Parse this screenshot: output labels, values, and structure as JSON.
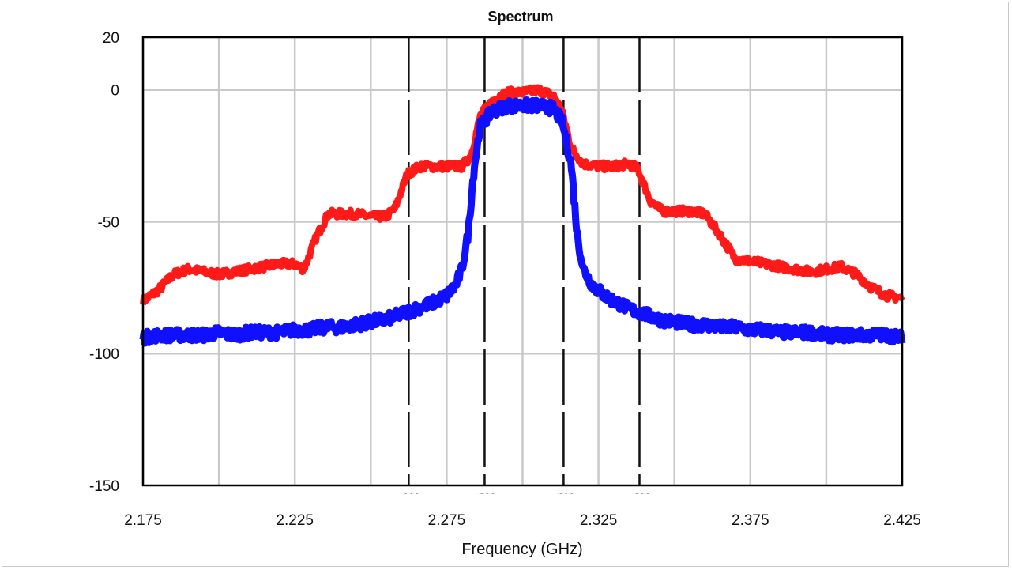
{
  "chart_data": {
    "type": "line",
    "title": "Spectrum",
    "xlabel": "Frequency (GHz)",
    "ylabel": "",
    "xlim": [
      2.175,
      2.425
    ],
    "ylim": [
      -150,
      20
    ],
    "x_ticks": [
      "2.175",
      "2.225",
      "2.275",
      "2.325",
      "2.375",
      "2.425"
    ],
    "y_ticks": [
      "20",
      "0",
      "-50",
      "-100",
      "-150"
    ],
    "x_grid": [
      2.175,
      2.2,
      2.225,
      2.25,
      2.275,
      2.3,
      2.325,
      2.35,
      2.375,
      2.4,
      2.425
    ],
    "y_grid": [
      0,
      -50,
      -100
    ],
    "grid": true,
    "markers": [
      {
        "x": 2.2625,
        "label": "~~~"
      },
      {
        "x": 2.2875,
        "label": "~~~"
      },
      {
        "x": 2.3135,
        "label": "~~~"
      },
      {
        "x": 2.3385,
        "label": "~~~"
      }
    ],
    "series": [
      {
        "color": "#ff1a1a",
        "points": [
          [
            2.175,
            -80
          ],
          [
            2.18,
            -76
          ],
          [
            2.185,
            -70
          ],
          [
            2.19,
            -68
          ],
          [
            2.195,
            -69
          ],
          [
            2.2,
            -70
          ],
          [
            2.205,
            -69
          ],
          [
            2.21,
            -68
          ],
          [
            2.215,
            -67
          ],
          [
            2.22,
            -66
          ],
          [
            2.225,
            -66
          ],
          [
            2.228,
            -68
          ],
          [
            2.232,
            -56
          ],
          [
            2.236,
            -47
          ],
          [
            2.24,
            -47
          ],
          [
            2.245,
            -47
          ],
          [
            2.25,
            -48
          ],
          [
            2.255,
            -48
          ],
          [
            2.258,
            -45
          ],
          [
            2.262,
            -32
          ],
          [
            2.266,
            -29
          ],
          [
            2.27,
            -29
          ],
          [
            2.275,
            -29
          ],
          [
            2.28,
            -29
          ],
          [
            2.283,
            -25
          ],
          [
            2.286,
            -10
          ],
          [
            2.29,
            -4
          ],
          [
            2.295,
            -1
          ],
          [
            2.3,
            -1
          ],
          [
            2.305,
            0
          ],
          [
            2.31,
            -2
          ],
          [
            2.313,
            -8
          ],
          [
            2.316,
            -22
          ],
          [
            2.32,
            -28
          ],
          [
            2.325,
            -29
          ],
          [
            2.33,
            -29
          ],
          [
            2.335,
            -28
          ],
          [
            2.338,
            -30
          ],
          [
            2.342,
            -42
          ],
          [
            2.346,
            -46
          ],
          [
            2.35,
            -46
          ],
          [
            2.355,
            -46
          ],
          [
            2.36,
            -47
          ],
          [
            2.365,
            -55
          ],
          [
            2.37,
            -64
          ],
          [
            2.375,
            -65
          ],
          [
            2.38,
            -66
          ],
          [
            2.385,
            -67
          ],
          [
            2.39,
            -68
          ],
          [
            2.395,
            -69
          ],
          [
            2.4,
            -68
          ],
          [
            2.405,
            -67
          ],
          [
            2.41,
            -70
          ],
          [
            2.415,
            -75
          ],
          [
            2.42,
            -78
          ],
          [
            2.425,
            -79
          ]
        ]
      },
      {
        "color": "#1010ff",
        "points": [
          [
            2.175,
            -94
          ],
          [
            2.18,
            -93
          ],
          [
            2.185,
            -93
          ],
          [
            2.19,
            -93
          ],
          [
            2.195,
            -93
          ],
          [
            2.2,
            -92
          ],
          [
            2.205,
            -93
          ],
          [
            2.21,
            -92
          ],
          [
            2.215,
            -92
          ],
          [
            2.22,
            -92
          ],
          [
            2.225,
            -91
          ],
          [
            2.23,
            -91
          ],
          [
            2.235,
            -90
          ],
          [
            2.24,
            -90
          ],
          [
            2.245,
            -89
          ],
          [
            2.25,
            -88
          ],
          [
            2.255,
            -87
          ],
          [
            2.26,
            -85
          ],
          [
            2.265,
            -83
          ],
          [
            2.27,
            -81
          ],
          [
            2.275,
            -78
          ],
          [
            2.278,
            -74
          ],
          [
            2.28,
            -68
          ],
          [
            2.282,
            -55
          ],
          [
            2.284,
            -30
          ],
          [
            2.286,
            -14
          ],
          [
            2.29,
            -8
          ],
          [
            2.295,
            -6
          ],
          [
            2.3,
            -6
          ],
          [
            2.305,
            -6
          ],
          [
            2.31,
            -7
          ],
          [
            2.313,
            -12
          ],
          [
            2.316,
            -28
          ],
          [
            2.318,
            -55
          ],
          [
            2.32,
            -68
          ],
          [
            2.323,
            -74
          ],
          [
            2.327,
            -78
          ],
          [
            2.33,
            -80
          ],
          [
            2.335,
            -83
          ],
          [
            2.34,
            -85
          ],
          [
            2.345,
            -87
          ],
          [
            2.35,
            -88
          ],
          [
            2.355,
            -89
          ],
          [
            2.36,
            -89
          ],
          [
            2.365,
            -90
          ],
          [
            2.37,
            -90
          ],
          [
            2.375,
            -91
          ],
          [
            2.38,
            -91
          ],
          [
            2.385,
            -92
          ],
          [
            2.39,
            -92
          ],
          [
            2.395,
            -92
          ],
          [
            2.4,
            -93
          ],
          [
            2.405,
            -93
          ],
          [
            2.41,
            -93
          ],
          [
            2.415,
            -93
          ],
          [
            2.42,
            -93
          ],
          [
            2.425,
            -94
          ]
        ]
      }
    ]
  }
}
